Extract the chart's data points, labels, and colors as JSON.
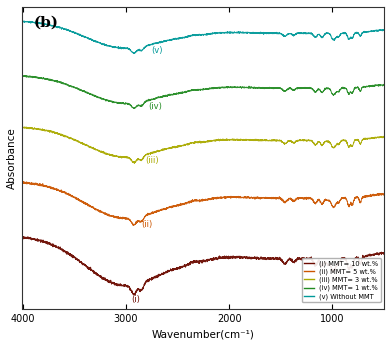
{
  "title": "(b)",
  "xlabel": "Wavenumber(cm⁻¹)",
  "ylabel": "Absorbance",
  "x_ticks": [
    4000,
    3000,
    2000,
    1000
  ],
  "colors": {
    "i": "#6B0A00",
    "ii": "#CC5500",
    "iii": "#AAAA00",
    "iv": "#228B22",
    "v": "#009999"
  },
  "labels": {
    "i": "(i) MMT= 10 wt.%",
    "ii": "(ii) MMT= 5 wt.%",
    "iii": "(iii) MMT= 3 wt.%",
    "iv": "(iv) MMT= 1 wt.%",
    "v": "(v) Without MMT"
  },
  "curve_labels": [
    "(i)",
    "(ii)",
    "(iii)",
    "(iv)",
    "(v)"
  ],
  "offsets": [
    0.0,
    0.38,
    0.72,
    1.02,
    1.32
  ],
  "scales": [
    0.32,
    0.24,
    0.2,
    0.18,
    0.18
  ],
  "background_color": "#ffffff"
}
